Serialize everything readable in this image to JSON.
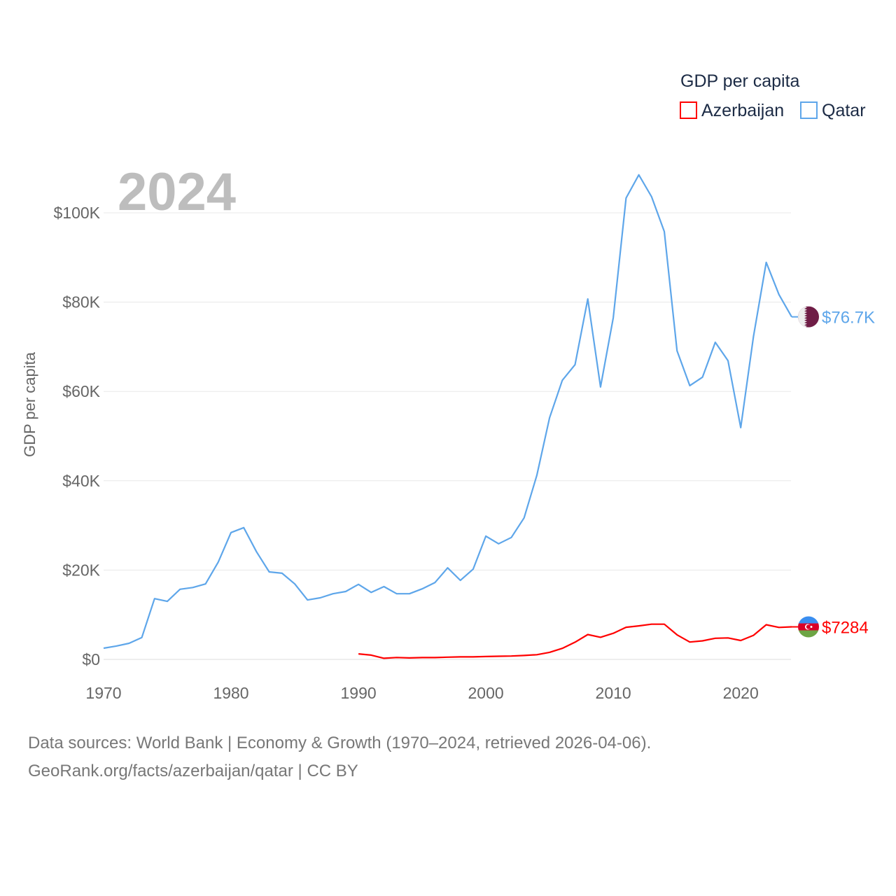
{
  "chart_data": {
    "type": "line",
    "title": "GDP per capita",
    "year_label": "2024",
    "xlabel": "",
    "ylabel": "GDP per capita",
    "xlim": [
      1970,
      2024
    ],
    "ylim": [
      0,
      110000
    ],
    "grid": true,
    "legend_placement": "top-right",
    "x_ticks": [
      1970,
      1980,
      1990,
      2000,
      2010,
      2020
    ],
    "x_tick_labels": [
      "1970",
      "1980",
      "1990",
      "2000",
      "2010",
      "2020"
    ],
    "y_ticks": [
      0,
      20000,
      40000,
      60000,
      80000,
      100000
    ],
    "y_tick_labels": [
      "$0",
      "$20K",
      "$40K",
      "$60K",
      "$80K",
      "$100K"
    ],
    "series": [
      {
        "name": "Azerbaijan",
        "color": "#ff0000",
        "flag": "azerbaijan-flag",
        "end_label": "$7284",
        "start_year": 1990,
        "values": [
          1240,
          950,
          250,
          420,
          330,
          400,
          410,
          500,
          560,
          570,
          650,
          700,
          760,
          880,
          1050,
          1580,
          2470,
          3850,
          5570,
          4950,
          5840,
          7190,
          7500,
          7880,
          7890,
          5500,
          3880,
          4150,
          4740,
          4810,
          4230,
          5390,
          7760,
          7160,
          7284
        ]
      },
      {
        "name": "Qatar",
        "color": "#5ea6ea",
        "flag": "qatar-flag",
        "end_label": "$76.7K",
        "start_year": 1970,
        "values": [
          2500,
          3000,
          3600,
          4900,
          13600,
          13000,
          15700,
          16100,
          16900,
          21800,
          28400,
          29500,
          24100,
          19600,
          19300,
          16900,
          13300,
          13800,
          14700,
          15200,
          16800,
          15000,
          16300,
          14700,
          14700,
          15800,
          17200,
          20500,
          17700,
          20200,
          27600,
          25900,
          27300,
          31700,
          41200,
          54100,
          62500,
          66000,
          80700,
          61000,
          76500,
          103300,
          108500,
          103600,
          95800,
          69100,
          61300,
          63200,
          71000,
          66900,
          51900,
          72300,
          88900,
          81700,
          76700
        ]
      }
    ]
  },
  "footer": {
    "line1": "Data sources: World Bank | Economy & Growth (1970–2024, retrieved 2026-04-06).",
    "line2": "GeoRank.org/facts/azerbaijan/qatar | CC BY"
  }
}
